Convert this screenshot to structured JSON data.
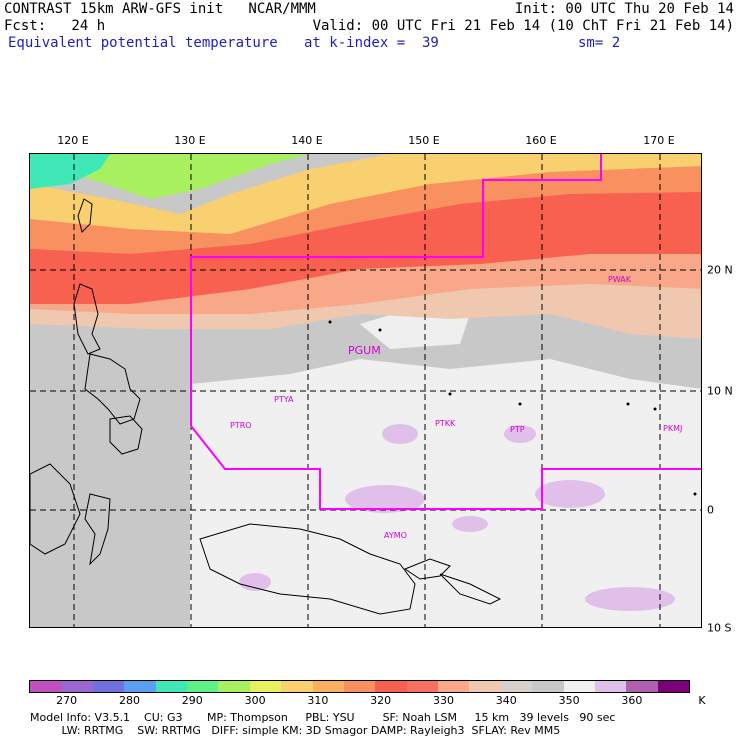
{
  "header": {
    "line1_left": "CONTRAST 15km ARW-GFS init   NCAR/MMM",
    "line1_right": "Init: 00 UTC Thu 20 Feb 14",
    "line2_left": "Fcst:   24 h",
    "line2_right": "Valid: 00 UTC Fri 21 Feb 14 (10 ChT Fri 21 Feb 14)",
    "field_name": "Equivalent potential temperature",
    "level": "at k-index =  39",
    "smoothing": "sm= 2"
  },
  "map": {
    "lon_labels": [
      "120 E",
      "130 E",
      "140 E",
      "150 E",
      "160 E",
      "170 E"
    ],
    "lat_labels": [
      "20 N",
      "10 N",
      "0",
      "10 S"
    ],
    "stations": [
      {
        "id": "PGUM",
        "name": "PGUM"
      },
      {
        "id": "PTYA",
        "name": "PTYA"
      },
      {
        "id": "PTRO",
        "name": "PTRO"
      },
      {
        "id": "PTKK",
        "name": "PTKK"
      },
      {
        "id": "PTPN",
        "name": "PTP"
      },
      {
        "id": "PKMJ",
        "name": "PKMJ"
      },
      {
        "id": "PWAK",
        "name": "PWAK"
      },
      {
        "id": "AYMO",
        "name": "AYMO"
      }
    ],
    "domain_boundary_color": "#ff00ff"
  },
  "colorbar": {
    "units_label": "K",
    "tick_labels": [
      "270",
      "280",
      "290",
      "300",
      "310",
      "320",
      "330",
      "340",
      "350",
      "360"
    ],
    "colors": [
      "#c050c0",
      "#9a68d0",
      "#7070e0",
      "#5aa0ee",
      "#40e8b8",
      "#60f088",
      "#a8f060",
      "#e8f060",
      "#f8d070",
      "#f8b060",
      "#f89060",
      "#f86050",
      "#f87060",
      "#f8a888",
      "#f0c8b0",
      "#d8d0cc",
      "#c8c8c8",
      "#f0f0f0",
      "#e0c0e8",
      "#b060b0",
      "#7a007a"
    ]
  },
  "model_info": {
    "line1": "Model Info: V3.5.1    CU: G3       MP: Thompson     PBL: YSU        SF: Noah LSM     15 km   39 levels   90 sec",
    "line2": "         LW: RRTMG    SW: RRTMG   DIFF: simple KM: 3D Smagor DAMP: Rayleigh3  SFLAY: Rev MM5"
  }
}
